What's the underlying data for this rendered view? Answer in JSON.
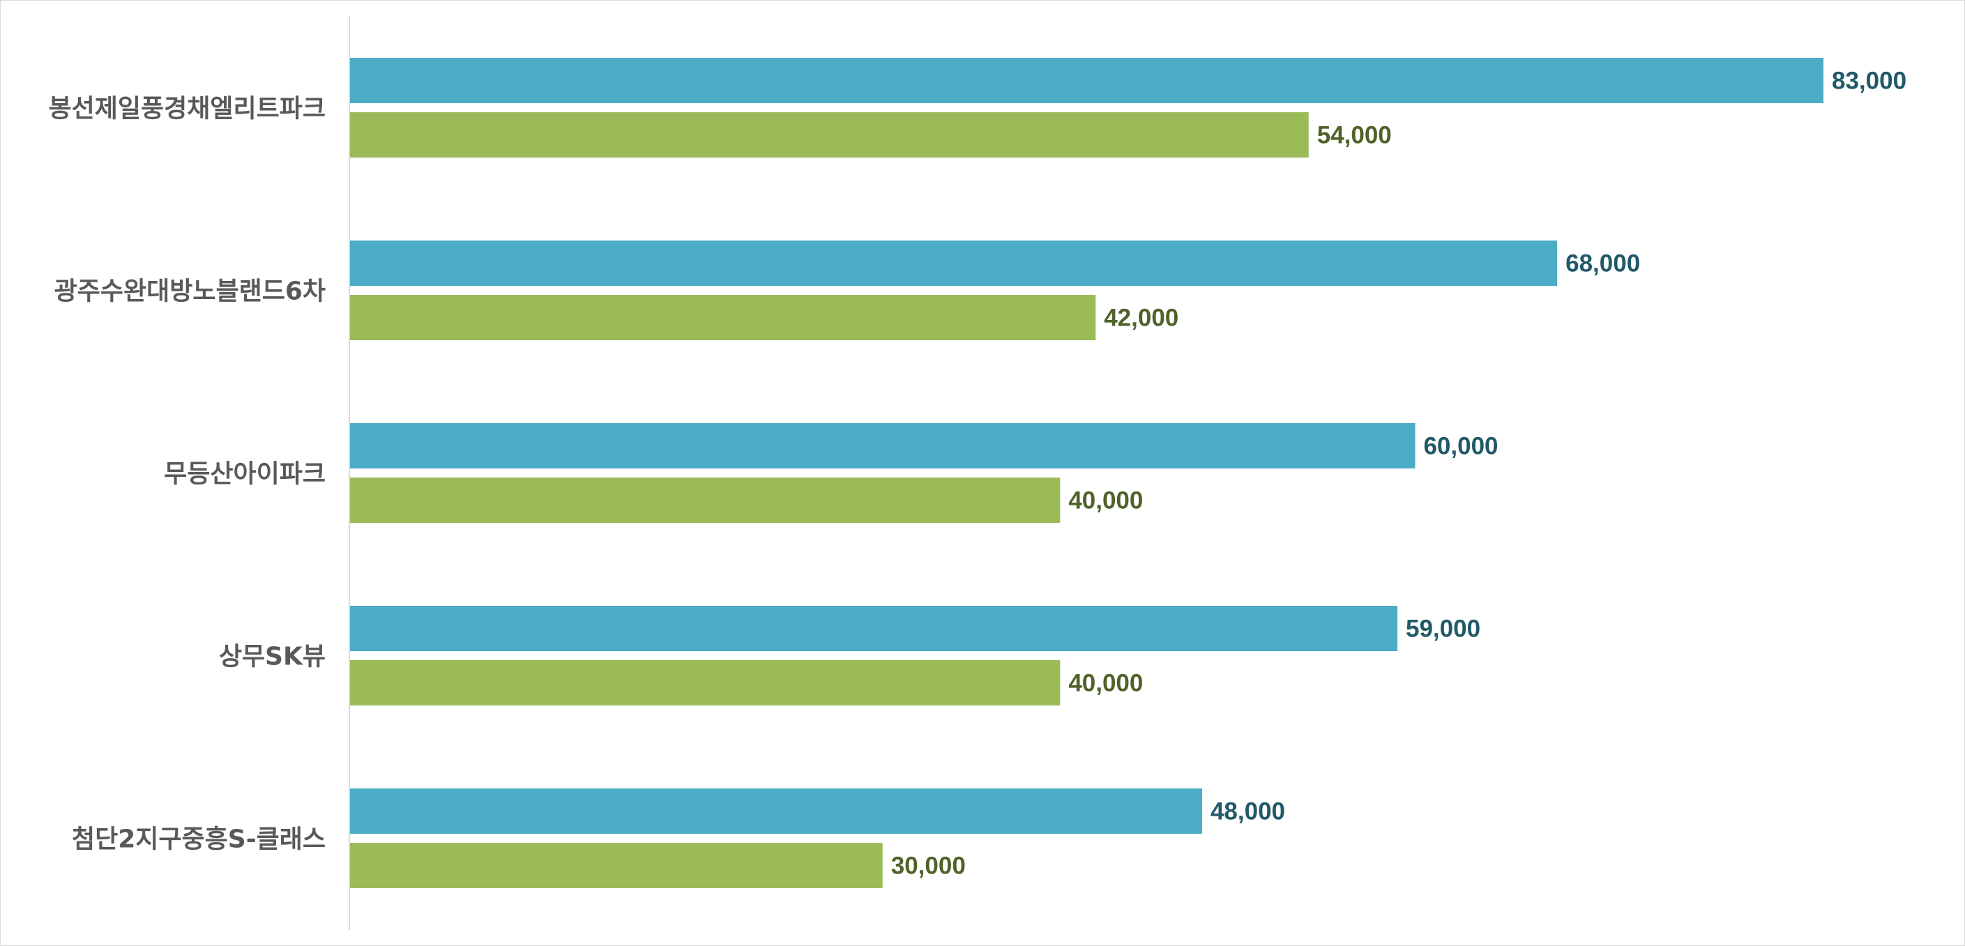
{
  "chart_data": {
    "type": "bar",
    "orientation": "horizontal",
    "categories": [
      "봉선제일풍경채엘리트파크",
      "광주수완대방노블랜드6차",
      "무등산아이파크",
      "상무SK뷰",
      "첨단2지구중흥S-클래스"
    ],
    "series": [
      {
        "values": [
          83000,
          68000,
          60000,
          59000,
          48000
        ],
        "color": "#4BACC6",
        "label_color": "#215968"
      },
      {
        "values": [
          54000,
          42000,
          40000,
          40000,
          30000
        ],
        "color": "#9BBB59",
        "label_color": "#4F6228"
      }
    ],
    "value_labels": [
      [
        "83,000",
        "68,000",
        "60,000",
        "59,000",
        "48,000"
      ],
      [
        "54,000",
        "42,000",
        "40,000",
        "40,000",
        "30,000"
      ]
    ],
    "xlim": [
      0,
      90000
    ],
    "grid": false,
    "legend": "none",
    "axis_line_color": "#d9d9d9"
  }
}
